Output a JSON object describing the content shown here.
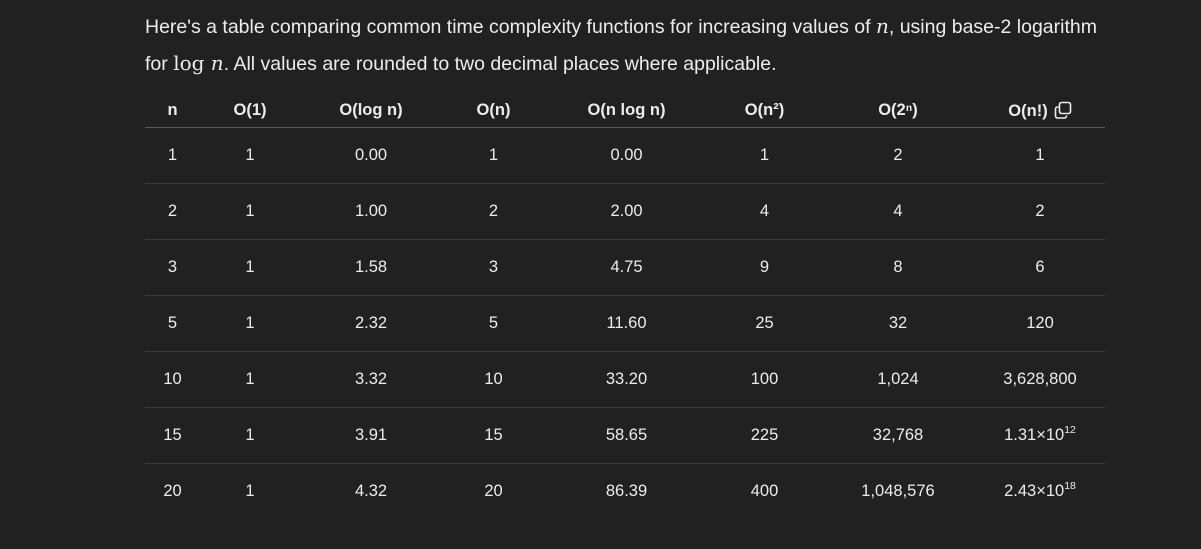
{
  "intro": {
    "part1": "Here's a table comparing common time complexity functions for increasing values of ",
    "var_n": "n",
    "part2": ", using base-2 logarithm for ",
    "log_word": "log ",
    "part3": ". All values are rounded to two decimal places where applicable."
  },
  "table": {
    "headers": [
      "n",
      "O(1)",
      "O(log n)",
      "O(n)",
      "O(n log n)",
      "O(n²)",
      "O(2ⁿ)",
      "O(n!)"
    ],
    "copy_icon": "copy-icon",
    "rows": [
      [
        "1",
        "1",
        "0.00",
        "1",
        "0.00",
        "1",
        "2",
        "1"
      ],
      [
        "2",
        "1",
        "1.00",
        "2",
        "2.00",
        "4",
        "4",
        "2"
      ],
      [
        "3",
        "1",
        "1.58",
        "3",
        "4.75",
        "9",
        "8",
        "6"
      ],
      [
        "5",
        "1",
        "2.32",
        "5",
        "11.60",
        "25",
        "32",
        "120"
      ],
      [
        "10",
        "1",
        "3.32",
        "10",
        "33.20",
        "100",
        "1,024",
        "3,628,800"
      ],
      [
        "15",
        "1",
        "3.91",
        "15",
        "58.65",
        "225",
        "32,768",
        "1.31×10"
      ],
      [
        "20",
        "1",
        "4.32",
        "20",
        "86.39",
        "400",
        "1,048,576",
        "2.43×10"
      ]
    ],
    "exponents": {
      "row5_last": "12",
      "row6_last": "18"
    }
  }
}
